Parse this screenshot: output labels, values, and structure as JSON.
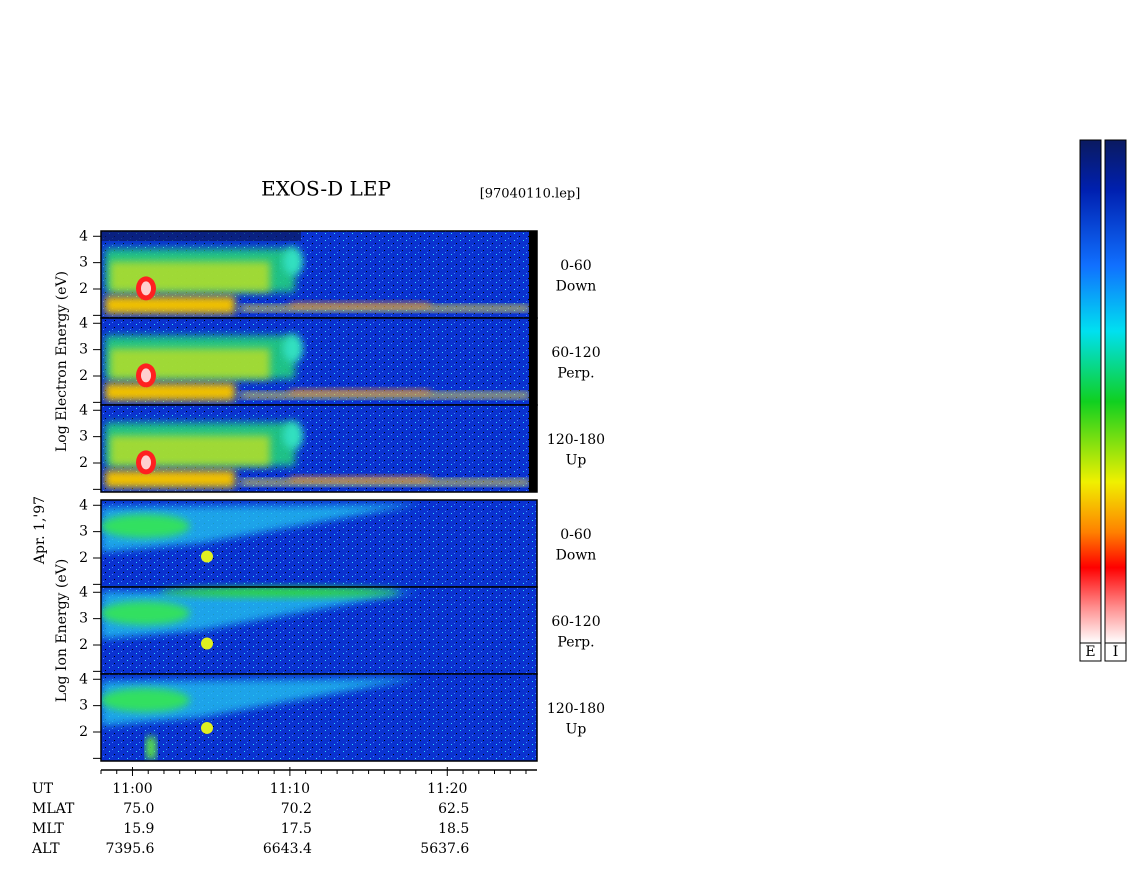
{
  "chart_data": {
    "type": "spectrogram",
    "title": "EXOS-D LEP",
    "file": "[97040110.lep]",
    "date": "Apr. 1,'97",
    "groups": [
      {
        "ylabel": "Log  Electron  Energy (eV)",
        "panels": [
          {
            "label": "0-60",
            "sublabel": "Down"
          },
          {
            "label": "60-120",
            "sublabel": "Perp."
          },
          {
            "label": "120-180",
            "sublabel": "Up"
          }
        ]
      },
      {
        "ylabel": "Log  Ion  Energy (eV)",
        "panels": [
          {
            "label": "0-60",
            "sublabel": "Down"
          },
          {
            "label": "60-120",
            "sublabel": "Perp."
          },
          {
            "label": "120-180",
            "sublabel": "Up"
          }
        ]
      }
    ],
    "ylim": [
      0.9,
      4.2
    ],
    "yticks": [
      2,
      3,
      4
    ],
    "minor_yticks": [
      1
    ],
    "xlabel": "UT",
    "xlim": [
      -2,
      25.7
    ],
    "xticks": [
      {
        "value": 0,
        "label": "11:00"
      },
      {
        "value": 10,
        "label": "11:10"
      },
      {
        "value": 20,
        "label": "11:20"
      }
    ],
    "minor_xticks": [
      -2,
      -1,
      1,
      2,
      3,
      4,
      5,
      6,
      7,
      8,
      9,
      11,
      12,
      13,
      14,
      15,
      16,
      17,
      18,
      19,
      21,
      22,
      23,
      24,
      25
    ],
    "footer_rows": [
      {
        "label": "MLAT",
        "values": [
          "75.0",
          "70.2",
          "62.5"
        ]
      },
      {
        "label": "MLT",
        "values": [
          "15.9",
          "17.5",
          "18.5"
        ]
      },
      {
        "label": "ALT",
        "values": [
          "7395.6",
          "6643.4",
          "5637.6"
        ]
      }
    ],
    "colorbars": [
      {
        "label": "E"
      },
      {
        "label": "I"
      }
    ]
  }
}
